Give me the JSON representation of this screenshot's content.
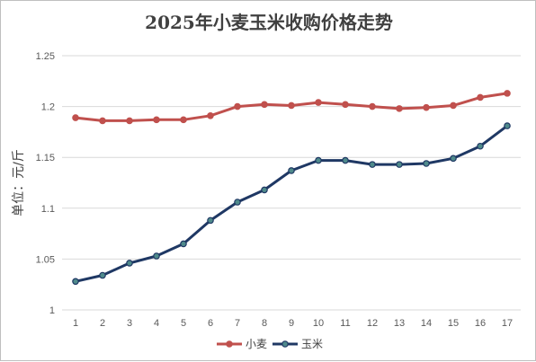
{
  "chart_data": {
    "type": "line",
    "title": "2025年小麦玉米收购价格走势",
    "xlabel": "",
    "ylabel": "单位：元/斤",
    "categories": [
      "1",
      "2",
      "3",
      "4",
      "5",
      "6",
      "7",
      "8",
      "9",
      "10",
      "11",
      "12",
      "13",
      "14",
      "15",
      "16",
      "17"
    ],
    "ylim": [
      1,
      1.25
    ],
    "yticks": [
      "1",
      "1.05",
      "1.1",
      "1.15",
      "1.2",
      "1.25"
    ],
    "grid": true,
    "legend_position": "bottom",
    "series": [
      {
        "name": "小麦",
        "color": "#c0504d",
        "values": [
          1.189,
          1.186,
          1.186,
          1.187,
          1.187,
          1.191,
          1.2,
          1.202,
          1.201,
          1.204,
          1.202,
          1.2,
          1.198,
          1.199,
          1.201,
          1.209,
          1.213
        ]
      },
      {
        "name": "玉米",
        "color": "#1f3864",
        "values": [
          1.028,
          1.034,
          1.046,
          1.053,
          1.065,
          1.088,
          1.106,
          1.118,
          1.137,
          1.147,
          1.147,
          1.143,
          1.143,
          1.144,
          1.149,
          1.161,
          1.181
        ]
      }
    ]
  }
}
